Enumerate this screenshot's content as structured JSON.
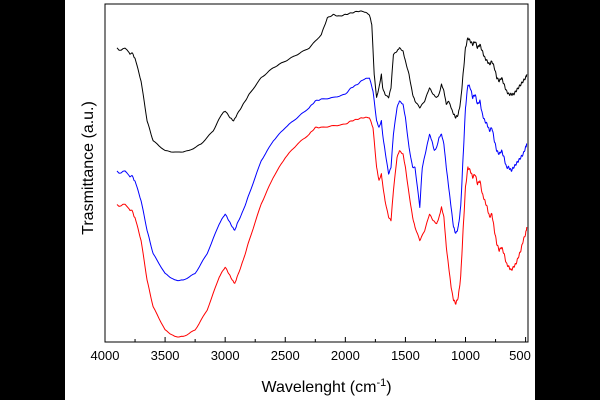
{
  "chart_data": {
    "type": "line",
    "title": "",
    "xlabel_main": "Wavelenght (cm",
    "xlabel_sup": "-1",
    "xlabel_end": ")",
    "ylabel": "Trasmittance (a.u.)",
    "xlim": [
      4000,
      480
    ],
    "ylim": [
      0,
      100
    ],
    "x_reversed": true,
    "y_ticks_labeled": false,
    "grid": false,
    "legend": "none",
    "x_tick_labels": [
      "4000",
      "3500",
      "3000",
      "2500",
      "2000",
      "1500",
      "1000",
      "500"
    ],
    "series": [
      {
        "color": "#000000",
        "points": [
          [
            3900,
            88
          ],
          [
            3800,
            87
          ],
          [
            3750,
            85
          ],
          [
            3700,
            78
          ],
          [
            3650,
            66
          ],
          [
            3600,
            60
          ],
          [
            3500,
            57
          ],
          [
            3400,
            56.5
          ],
          [
            3300,
            57
          ],
          [
            3200,
            59
          ],
          [
            3100,
            63
          ],
          [
            3030,
            68
          ],
          [
            3000,
            69
          ],
          [
            2960,
            67
          ],
          [
            2930,
            66
          ],
          [
            2900,
            68
          ],
          [
            2850,
            71
          ],
          [
            2800,
            74
          ],
          [
            2700,
            79
          ],
          [
            2600,
            82
          ],
          [
            2500,
            84
          ],
          [
            2400,
            86
          ],
          [
            2300,
            88
          ],
          [
            2200,
            92
          ],
          [
            2150,
            97
          ],
          [
            2100,
            98
          ],
          [
            2050,
            97.5
          ],
          [
            2000,
            98
          ],
          [
            1950,
            98.5
          ],
          [
            1900,
            99
          ],
          [
            1850,
            99
          ],
          [
            1800,
            98
          ],
          [
            1780,
            95
          ],
          [
            1760,
            80
          ],
          [
            1740,
            73
          ],
          [
            1720,
            76
          ],
          [
            1700,
            80
          ],
          [
            1690,
            76
          ],
          [
            1670,
            74
          ],
          [
            1640,
            73
          ],
          [
            1620,
            76
          ],
          [
            1600,
            86
          ],
          [
            1570,
            87
          ],
          [
            1550,
            88
          ],
          [
            1520,
            87
          ],
          [
            1500,
            84
          ],
          [
            1470,
            80
          ],
          [
            1440,
            74
          ],
          [
            1420,
            72
          ],
          [
            1380,
            70
          ],
          [
            1340,
            72
          ],
          [
            1300,
            76
          ],
          [
            1270,
            74
          ],
          [
            1240,
            73
          ],
          [
            1220,
            74
          ],
          [
            1200,
            77
          ],
          [
            1180,
            75
          ],
          [
            1160,
            71
          ],
          [
            1140,
            72
          ],
          [
            1120,
            70
          ],
          [
            1100,
            68
          ],
          [
            1080,
            67
          ],
          [
            1060,
            68
          ],
          [
            1040,
            72
          ],
          [
            1020,
            80
          ],
          [
            1000,
            88
          ],
          [
            980,
            91
          ],
          [
            960,
            90
          ],
          [
            940,
            89
          ],
          [
            920,
            90
          ],
          [
            900,
            88
          ],
          [
            880,
            89
          ],
          [
            860,
            87
          ],
          [
            840,
            85
          ],
          [
            820,
            84
          ],
          [
            800,
            83
          ],
          [
            780,
            84
          ],
          [
            760,
            82
          ],
          [
            740,
            79
          ],
          [
            720,
            78
          ],
          [
            700,
            79
          ],
          [
            680,
            77
          ],
          [
            660,
            75
          ],
          [
            640,
            74
          ],
          [
            620,
            74
          ],
          [
            600,
            74
          ],
          [
            580,
            75
          ],
          [
            560,
            76
          ],
          [
            540,
            77
          ],
          [
            520,
            78
          ],
          [
            500,
            79
          ],
          [
            490,
            80
          ]
        ]
      },
      {
        "color": "#0000ff",
        "points": [
          [
            3900,
            51
          ],
          [
            3800,
            50
          ],
          [
            3750,
            48
          ],
          [
            3700,
            42
          ],
          [
            3650,
            33
          ],
          [
            3600,
            26
          ],
          [
            3500,
            20
          ],
          [
            3420,
            18
          ],
          [
            3350,
            18
          ],
          [
            3250,
            20
          ],
          [
            3150,
            26
          ],
          [
            3050,
            35
          ],
          [
            3000,
            38
          ],
          [
            2970,
            36
          ],
          [
            2940,
            34
          ],
          [
            2920,
            33
          ],
          [
            2900,
            35
          ],
          [
            2850,
            39
          ],
          [
            2800,
            44
          ],
          [
            2700,
            54
          ],
          [
            2600,
            60
          ],
          [
            2500,
            64
          ],
          [
            2400,
            67
          ],
          [
            2300,
            70
          ],
          [
            2250,
            72
          ],
          [
            2200,
            72.5
          ],
          [
            2100,
            73
          ],
          [
            2000,
            74
          ],
          [
            1950,
            76
          ],
          [
            1900,
            77
          ],
          [
            1850,
            78.5
          ],
          [
            1800,
            79
          ],
          [
            1770,
            75
          ],
          [
            1740,
            66
          ],
          [
            1720,
            64
          ],
          [
            1700,
            66
          ],
          [
            1690,
            62
          ],
          [
            1670,
            57
          ],
          [
            1640,
            50
          ],
          [
            1620,
            52
          ],
          [
            1600,
            62
          ],
          [
            1570,
            70
          ],
          [
            1550,
            72
          ],
          [
            1520,
            71
          ],
          [
            1500,
            67
          ],
          [
            1470,
            58
          ],
          [
            1440,
            52
          ],
          [
            1420,
            52
          ],
          [
            1380,
            40
          ],
          [
            1360,
            52
          ],
          [
            1330,
            57
          ],
          [
            1300,
            62
          ],
          [
            1280,
            60
          ],
          [
            1260,
            57
          ],
          [
            1240,
            58
          ],
          [
            1220,
            61
          ],
          [
            1200,
            62
          ],
          [
            1180,
            59
          ],
          [
            1160,
            52
          ],
          [
            1140,
            46
          ],
          [
            1120,
            40
          ],
          [
            1100,
            34
          ],
          [
            1080,
            32
          ],
          [
            1060,
            34
          ],
          [
            1040,
            40
          ],
          [
            1020,
            55
          ],
          [
            1000,
            70
          ],
          [
            980,
            77
          ],
          [
            960,
            76
          ],
          [
            940,
            73
          ],
          [
            920,
            74
          ],
          [
            900,
            71
          ],
          [
            880,
            72
          ],
          [
            860,
            68
          ],
          [
            840,
            66
          ],
          [
            820,
            65
          ],
          [
            800,
            63
          ],
          [
            780,
            64
          ],
          [
            760,
            60
          ],
          [
            740,
            57
          ],
          [
            720,
            56
          ],
          [
            700,
            57
          ],
          [
            680,
            55
          ],
          [
            660,
            52
          ],
          [
            640,
            52
          ],
          [
            620,
            51
          ],
          [
            600,
            52
          ],
          [
            580,
            53
          ],
          [
            560,
            54
          ],
          [
            540,
            55
          ],
          [
            520,
            56
          ],
          [
            500,
            58
          ],
          [
            490,
            59
          ]
        ]
      },
      {
        "color": "#ff0000",
        "points": [
          [
            3900,
            41
          ],
          [
            3800,
            40
          ],
          [
            3750,
            37
          ],
          [
            3700,
            30
          ],
          [
            3650,
            18
          ],
          [
            3600,
            10
          ],
          [
            3500,
            3
          ],
          [
            3420,
            1
          ],
          [
            3350,
            1
          ],
          [
            3250,
            3
          ],
          [
            3150,
            9
          ],
          [
            3050,
            19
          ],
          [
            3000,
            22
          ],
          [
            2970,
            20
          ],
          [
            2940,
            18
          ],
          [
            2920,
            17
          ],
          [
            2900,
            19
          ],
          [
            2850,
            24
          ],
          [
            2800,
            30
          ],
          [
            2700,
            41
          ],
          [
            2600,
            49
          ],
          [
            2500,
            55
          ],
          [
            2400,
            59
          ],
          [
            2300,
            62
          ],
          [
            2250,
            64
          ],
          [
            2200,
            64
          ],
          [
            2100,
            64.5
          ],
          [
            2000,
            65
          ],
          [
            1950,
            66
          ],
          [
            1900,
            66.5
          ],
          [
            1850,
            67
          ],
          [
            1800,
            67
          ],
          [
            1770,
            64
          ],
          [
            1740,
            52
          ],
          [
            1720,
            48
          ],
          [
            1700,
            50
          ],
          [
            1690,
            47
          ],
          [
            1670,
            42
          ],
          [
            1640,
            37
          ],
          [
            1620,
            36
          ],
          [
            1600,
            45
          ],
          [
            1570,
            55
          ],
          [
            1550,
            57
          ],
          [
            1520,
            56
          ],
          [
            1500,
            52
          ],
          [
            1470,
            44
          ],
          [
            1440,
            37
          ],
          [
            1420,
            34
          ],
          [
            1380,
            30
          ],
          [
            1340,
            33
          ],
          [
            1300,
            38
          ],
          [
            1270,
            36
          ],
          [
            1240,
            35
          ],
          [
            1220,
            37
          ],
          [
            1200,
            40
          ],
          [
            1180,
            37
          ],
          [
            1160,
            28
          ],
          [
            1140,
            22
          ],
          [
            1120,
            16
          ],
          [
            1100,
            12
          ],
          [
            1080,
            11
          ],
          [
            1060,
            13
          ],
          [
            1040,
            19
          ],
          [
            1020,
            33
          ],
          [
            1000,
            46
          ],
          [
            980,
            52
          ],
          [
            960,
            51
          ],
          [
            940,
            49
          ],
          [
            920,
            50
          ],
          [
            900,
            47
          ],
          [
            880,
            48
          ],
          [
            860,
            44
          ],
          [
            840,
            42
          ],
          [
            820,
            40
          ],
          [
            800,
            37
          ],
          [
            780,
            38
          ],
          [
            760,
            33
          ],
          [
            740,
            29
          ],
          [
            720,
            27
          ],
          [
            700,
            28
          ],
          [
            680,
            26
          ],
          [
            660,
            23
          ],
          [
            640,
            22
          ],
          [
            620,
            21
          ],
          [
            600,
            22
          ],
          [
            580,
            23
          ],
          [
            560,
            25
          ],
          [
            540,
            27
          ],
          [
            520,
            30
          ],
          [
            500,
            32
          ],
          [
            490,
            34
          ]
        ]
      }
    ]
  }
}
